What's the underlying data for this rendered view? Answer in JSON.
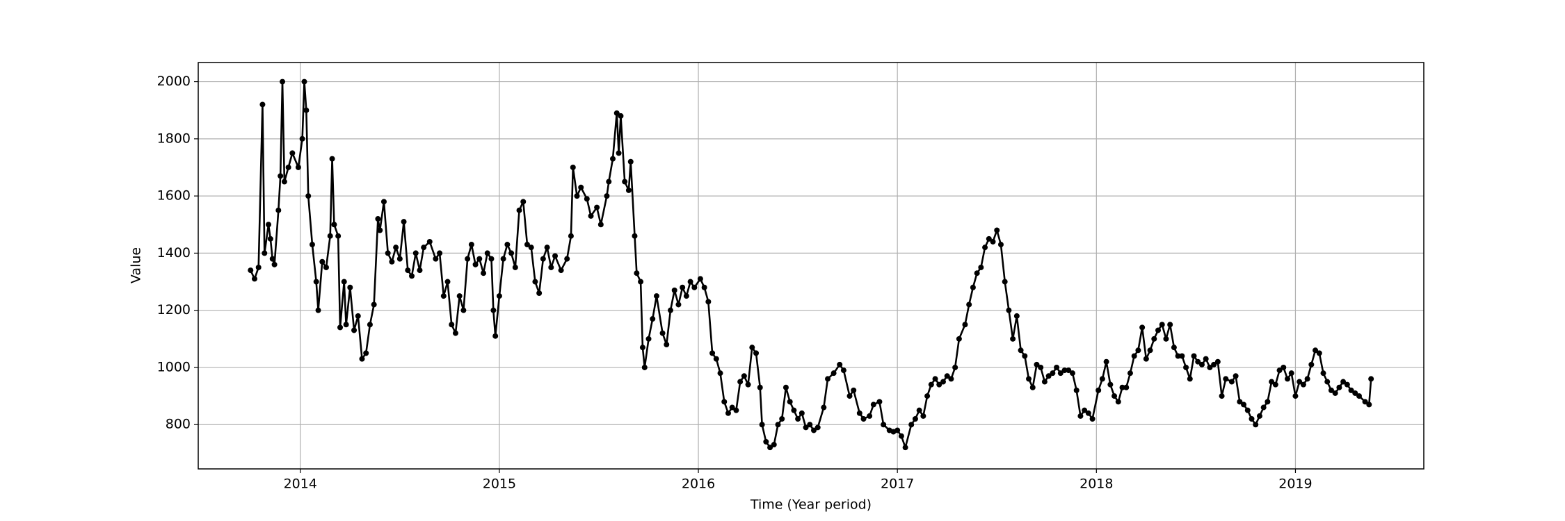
{
  "chart_data": {
    "type": "line",
    "xlabel": "Time (Year period)",
    "ylabel": "Value",
    "color": "#000000",
    "grid": true,
    "xlim": [
      2013.487,
      2019.645
    ],
    "ylim": [
      645,
      2067
    ],
    "xticks": [
      2014,
      2015,
      2016,
      2017,
      2018,
      2019
    ],
    "yticks": [
      800,
      1000,
      1200,
      1400,
      1600,
      1800,
      2000
    ],
    "x": [
      2013.75,
      2013.77,
      2013.79,
      2013.81,
      2013.82,
      2013.84,
      2013.85,
      2013.86,
      2013.87,
      2013.89,
      2013.9,
      2013.91,
      2013.92,
      2013.94,
      2013.96,
      2013.99,
      2014.01,
      2014.02,
      2014.03,
      2014.04,
      2014.06,
      2014.08,
      2014.09,
      2014.11,
      2014.13,
      2014.15,
      2014.16,
      2014.17,
      2014.19,
      2014.2,
      2014.22,
      2014.23,
      2014.25,
      2014.27,
      2014.29,
      2014.31,
      2014.33,
      2014.35,
      2014.37,
      2014.39,
      2014.4,
      2014.42,
      2014.44,
      2014.46,
      2014.48,
      2014.5,
      2014.52,
      2014.54,
      2014.56,
      2014.58,
      2014.6,
      2014.62,
      2014.65,
      2014.68,
      2014.7,
      2014.72,
      2014.74,
      2014.76,
      2014.78,
      2014.8,
      2014.82,
      2014.84,
      2014.86,
      2014.88,
      2014.9,
      2014.92,
      2014.94,
      2014.96,
      2014.97,
      2014.98,
      2015.0,
      2015.02,
      2015.04,
      2015.06,
      2015.08,
      2015.1,
      2015.12,
      2015.14,
      2015.16,
      2015.18,
      2015.2,
      2015.22,
      2015.24,
      2015.26,
      2015.28,
      2015.31,
      2015.34,
      2015.36,
      2015.37,
      2015.39,
      2015.41,
      2015.44,
      2015.46,
      2015.49,
      2015.51,
      2015.54,
      2015.55,
      2015.57,
      2015.59,
      2015.6,
      2015.61,
      2015.63,
      2015.65,
      2015.66,
      2015.68,
      2015.69,
      2015.71,
      2015.72,
      2015.73,
      2015.75,
      2015.77,
      2015.79,
      2015.82,
      2015.84,
      2015.86,
      2015.88,
      2015.9,
      2015.92,
      2015.94,
      2015.96,
      2015.98,
      2016.01,
      2016.03,
      2016.05,
      2016.07,
      2016.09,
      2016.11,
      2016.13,
      2016.15,
      2016.17,
      2016.19,
      2016.21,
      2016.23,
      2016.25,
      2016.27,
      2016.29,
      2016.31,
      2016.32,
      2016.34,
      2016.36,
      2016.38,
      2016.4,
      2016.42,
      2016.44,
      2016.46,
      2016.48,
      2016.5,
      2016.52,
      2016.54,
      2016.56,
      2016.58,
      2016.6,
      2016.63,
      2016.65,
      2016.68,
      2016.71,
      2016.73,
      2016.76,
      2016.78,
      2016.81,
      2016.83,
      2016.86,
      2016.88,
      2016.91,
      2016.93,
      2016.96,
      2016.98,
      2017.0,
      2017.02,
      2017.04,
      2017.07,
      2017.09,
      2017.11,
      2017.13,
      2017.15,
      2017.17,
      2017.19,
      2017.21,
      2017.23,
      2017.25,
      2017.27,
      2017.29,
      2017.31,
      2017.34,
      2017.36,
      2017.38,
      2017.4,
      2017.42,
      2017.44,
      2017.46,
      2017.48,
      2017.5,
      2017.52,
      2017.54,
      2017.56,
      2017.58,
      2017.6,
      2017.62,
      2017.64,
      2017.66,
      2017.68,
      2017.7,
      2017.72,
      2017.74,
      2017.76,
      2017.78,
      2017.8,
      2017.82,
      2017.84,
      2017.86,
      2017.88,
      2017.9,
      2017.92,
      2017.94,
      2017.96,
      2017.98,
      2018.01,
      2018.03,
      2018.05,
      2018.07,
      2018.09,
      2018.11,
      2018.13,
      2018.15,
      2018.17,
      2018.19,
      2018.21,
      2018.23,
      2018.25,
      2018.27,
      2018.29,
      2018.31,
      2018.33,
      2018.35,
      2018.37,
      2018.39,
      2018.41,
      2018.43,
      2018.45,
      2018.47,
      2018.49,
      2018.51,
      2018.53,
      2018.55,
      2018.57,
      2018.59,
      2018.61,
      2018.63,
      2018.65,
      2018.68,
      2018.7,
      2018.72,
      2018.74,
      2018.76,
      2018.78,
      2018.8,
      2018.82,
      2018.84,
      2018.86,
      2018.88,
      2018.9,
      2018.92,
      2018.94,
      2018.96,
      2018.98,
      2019.0,
      2019.02,
      2019.04,
      2019.06,
      2019.08,
      2019.1,
      2019.12,
      2019.14,
      2019.16,
      2019.18,
      2019.2,
      2019.22,
      2019.24,
      2019.26,
      2019.28,
      2019.3,
      2019.32,
      2019.35,
      2019.37,
      2019.38
    ],
    "values": [
      1340,
      1310,
      1350,
      1920,
      1400,
      1500,
      1450,
      1380,
      1360,
      1550,
      1670,
      2000,
      1650,
      1700,
      1750,
      1700,
      1800,
      2000,
      1900,
      1600,
      1430,
      1300,
      1200,
      1370,
      1350,
      1460,
      1730,
      1500,
      1460,
      1140,
      1300,
      1150,
      1280,
      1130,
      1180,
      1030,
      1050,
      1150,
      1220,
      1520,
      1480,
      1580,
      1400,
      1370,
      1420,
      1380,
      1510,
      1340,
      1320,
      1400,
      1340,
      1420,
      1440,
      1380,
      1400,
      1250,
      1300,
      1150,
      1120,
      1250,
      1200,
      1380,
      1430,
      1360,
      1380,
      1330,
      1400,
      1380,
      1200,
      1110,
      1250,
      1380,
      1430,
      1400,
      1350,
      1550,
      1580,
      1430,
      1420,
      1300,
      1260,
      1380,
      1420,
      1350,
      1390,
      1340,
      1380,
      1460,
      1700,
      1600,
      1630,
      1590,
      1530,
      1560,
      1500,
      1600,
      1650,
      1730,
      1890,
      1750,
      1880,
      1650,
      1620,
      1720,
      1460,
      1330,
      1300,
      1070,
      1000,
      1100,
      1170,
      1250,
      1120,
      1080,
      1200,
      1270,
      1220,
      1280,
      1250,
      1300,
      1280,
      1310,
      1280,
      1230,
      1050,
      1030,
      980,
      880,
      840,
      860,
      850,
      950,
      970,
      940,
      1070,
      1050,
      930,
      800,
      740,
      720,
      730,
      800,
      820,
      930,
      880,
      850,
      820,
      840,
      790,
      800,
      780,
      790,
      860,
      960,
      980,
      1010,
      990,
      900,
      920,
      840,
      820,
      830,
      870,
      880,
      800,
      780,
      775,
      780,
      760,
      720,
      800,
      820,
      850,
      830,
      900,
      940,
      960,
      940,
      950,
      970,
      960,
      1000,
      1100,
      1150,
      1220,
      1280,
      1330,
      1350,
      1420,
      1450,
      1440,
      1480,
      1430,
      1300,
      1200,
      1100,
      1180,
      1060,
      1040,
      960,
      930,
      1010,
      1000,
      950,
      970,
      980,
      1000,
      980,
      990,
      990,
      980,
      920,
      830,
      850,
      840,
      820,
      920,
      960,
      1020,
      940,
      900,
      880,
      930,
      930,
      980,
      1040,
      1060,
      1140,
      1030,
      1060,
      1100,
      1130,
      1150,
      1100,
      1150,
      1070,
      1040,
      1040,
      1000,
      960,
      1040,
      1020,
      1010,
      1030,
      1000,
      1010,
      1020,
      900,
      960,
      950,
      970,
      880,
      870,
      850,
      820,
      800,
      830,
      860,
      880,
      950,
      940,
      990,
      1000,
      960,
      980,
      900,
      950,
      940,
      960,
      1010,
      1060,
      1050,
      980,
      950,
      920,
      910,
      930,
      950,
      940,
      920,
      910,
      900,
      880,
      870,
      960
    ]
  }
}
